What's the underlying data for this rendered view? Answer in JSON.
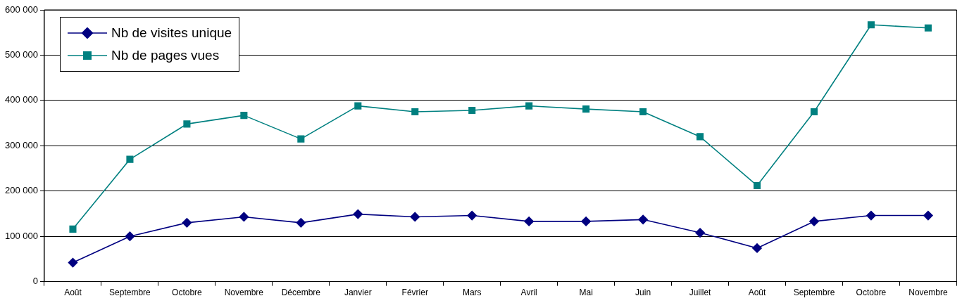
{
  "chart_data": {
    "type": "line",
    "categories": [
      "Août",
      "Septembre",
      "Octobre",
      "Novembre",
      "Décembre",
      "Janvier",
      "Février",
      "Mars",
      "Avril",
      "Mai",
      "Juin",
      "Juillet",
      "Août",
      "Septembre",
      "Octobre",
      "Novembre"
    ],
    "series": [
      {
        "name": "Nb de visites unique",
        "color": "#000080",
        "marker": "diamond",
        "values": [
          42000,
          100000,
          130000,
          143000,
          130000,
          149000,
          143000,
          146000,
          133000,
          133000,
          137000,
          108000,
          74000,
          133000,
          146000,
          146000
        ]
      },
      {
        "name": "Nb de pages vues",
        "color": "#008080",
        "marker": "square",
        "values": [
          116000,
          270000,
          348000,
          367000,
          315000,
          388000,
          375000,
          378000,
          388000,
          381000,
          375000,
          320000,
          212000,
          375000,
          567000,
          560000
        ]
      }
    ],
    "ylim": [
      0,
      600000
    ],
    "yticks": [
      {
        "value": 0,
        "label": "0"
      },
      {
        "value": 100000,
        "label": "100 000"
      },
      {
        "value": 200000,
        "label": "200 000"
      },
      {
        "value": 300000,
        "label": "300 000"
      },
      {
        "value": 400000,
        "label": "400 000"
      },
      {
        "value": 500000,
        "label": "500 000"
      },
      {
        "value": 600000,
        "label": "600 000"
      }
    ],
    "grid": "y",
    "legend": "top left",
    "line_style": "solid"
  }
}
